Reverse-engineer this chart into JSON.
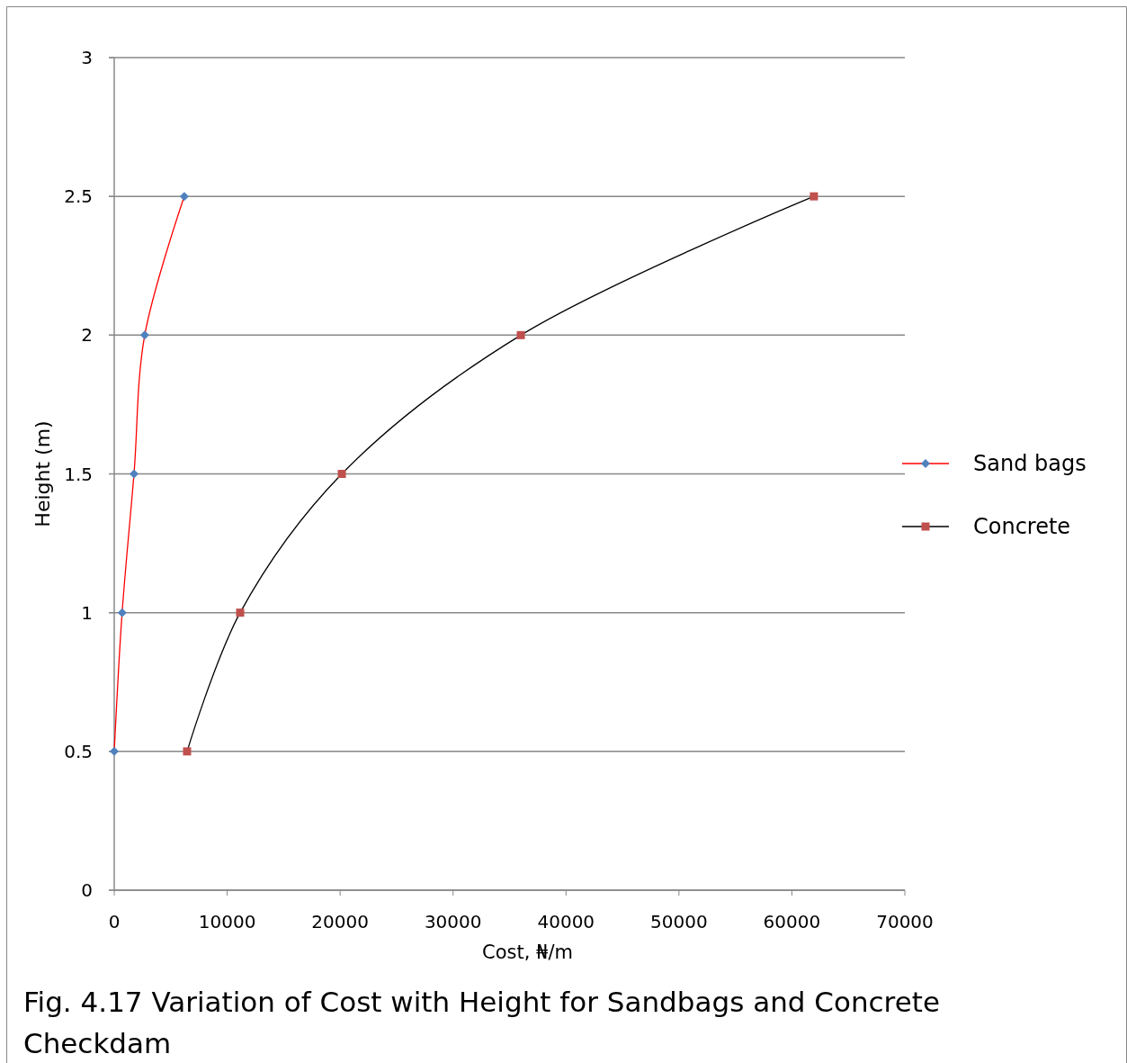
{
  "chart_data": {
    "type": "line",
    "title": "Fig. 4.17 Variation of Cost with Height for Sandbags and Concrete Checkdam",
    "xlabel": "Cost, ₦/m",
    "ylabel": "Height (m)",
    "series": [
      {
        "name": "Sand bags",
        "color": "#ff0000",
        "colors": [
          "#4f81bd",
          "#4f81bd",
          "#4f81bd",
          "#4f81bd",
          "#4f81bd"
        ],
        "marker": "diamond",
        "x": [
          0,
          700,
          1750,
          2700,
          6200
        ],
        "values": [
          0.5,
          1,
          1.5,
          2,
          2.5
        ]
      },
      {
        "name": "Concrete",
        "color": "#000000",
        "colors": [
          "#c0504d",
          "#c0504d",
          "#c0504d",
          "#c0504d",
          "#c0504d"
        ],
        "marker": "square",
        "x": [
          6450,
          11150,
          20150,
          36000,
          61950
        ],
        "values": [
          0.5,
          1,
          1.5,
          2,
          2.5
        ]
      }
    ],
    "xlim": [
      0,
      70000
    ],
    "xticks": [
      0,
      10000,
      20000,
      30000,
      40000,
      50000,
      60000,
      70000
    ],
    "ylim": [
      0,
      3
    ],
    "yticks": [
      0,
      0.5,
      1,
      1.5,
      2,
      2.5,
      3
    ],
    "grid": "y",
    "legend": "right"
  }
}
